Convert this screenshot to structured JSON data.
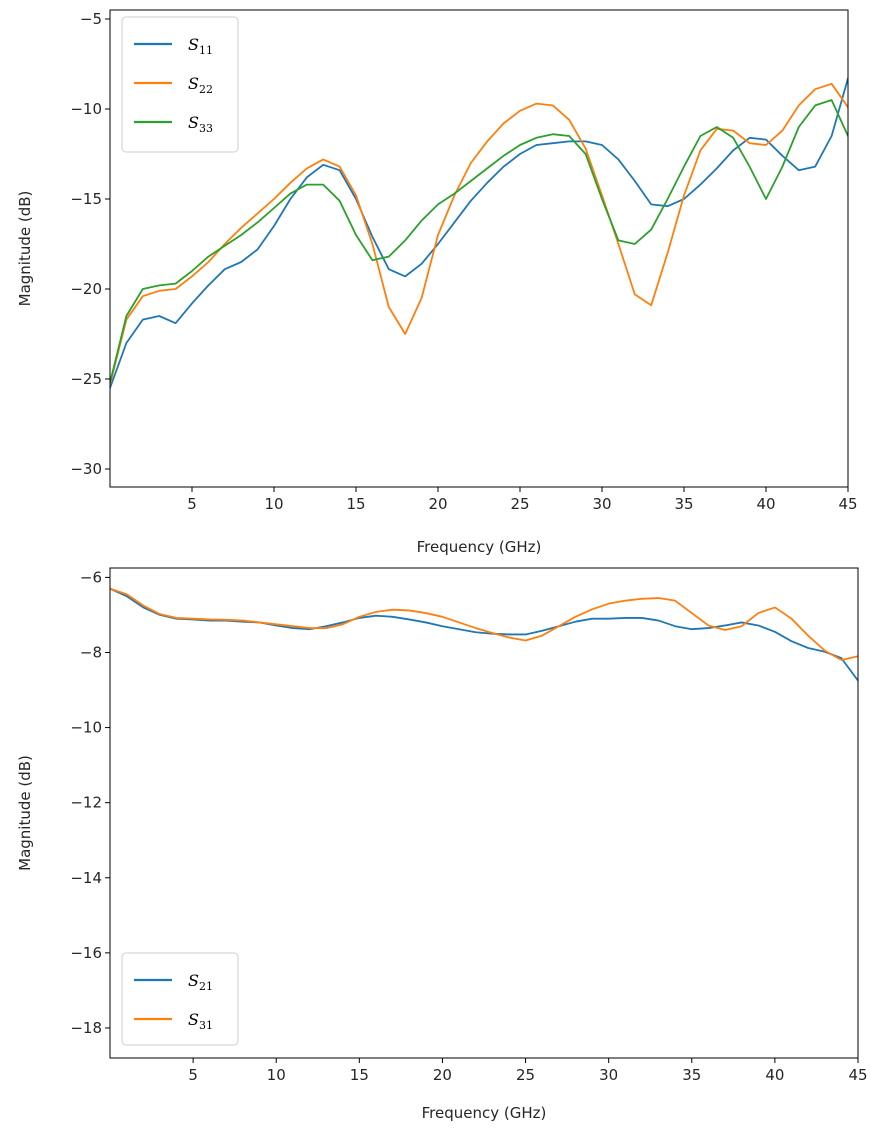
{
  "chart_data": [
    {
      "type": "line",
      "xlabel": "Frequency (GHz)",
      "ylabel": "Magnitude (dB)",
      "xlim": [
        0,
        45
      ],
      "ylim": [
        -31,
        -4.5
      ],
      "xticks": [
        5,
        10,
        15,
        20,
        25,
        30,
        35,
        40,
        45
      ],
      "xtick_labels": [
        "5",
        "10",
        "15",
        "20",
        "25",
        "30",
        "35",
        "40",
        "45"
      ],
      "yticks": [
        -30,
        -25,
        -20,
        -15,
        -10,
        -5
      ],
      "ytick_labels": [
        "−30",
        "−25",
        "−20",
        "−15",
        "−10",
        "−5"
      ],
      "legend_position": "top-left",
      "series": [
        {
          "name": "S11",
          "label_main": "S",
          "label_sub": "11",
          "color": "#1f77b4",
          "x": [
            0,
            1,
            2,
            3,
            4,
            5,
            6,
            7,
            8,
            9,
            10,
            11,
            12,
            13,
            14,
            15,
            16,
            17,
            18,
            19,
            20,
            21,
            22,
            23,
            24,
            25,
            26,
            27,
            28,
            29,
            30,
            31,
            32,
            33,
            34,
            35,
            36,
            37,
            38,
            39,
            40,
            41,
            42,
            43,
            44,
            45
          ],
          "y": [
            -25.5,
            -23.0,
            -21.7,
            -21.5,
            -21.9,
            -20.8,
            -19.8,
            -18.9,
            -18.5,
            -17.8,
            -16.5,
            -15.0,
            -13.8,
            -13.1,
            -13.4,
            -15.0,
            -17.1,
            -18.9,
            -19.3,
            -18.6,
            -17.5,
            -16.3,
            -15.1,
            -14.1,
            -13.2,
            -12.5,
            -12.0,
            -11.9,
            -11.8,
            -11.8,
            -12.0,
            -12.8,
            -14.0,
            -15.3,
            -15.4,
            -15.0,
            -14.2,
            -13.3,
            -12.3,
            -11.6,
            -11.7,
            -12.6,
            -13.4,
            -13.2,
            -11.5,
            -8.3
          ]
        },
        {
          "name": "S22",
          "label_main": "S",
          "label_sub": "22",
          "color": "#ff7f0e",
          "x": [
            0,
            1,
            2,
            3,
            4,
            5,
            6,
            7,
            8,
            9,
            10,
            11,
            12,
            13,
            14,
            15,
            16,
            17,
            18,
            19,
            20,
            21,
            22,
            23,
            24,
            25,
            26,
            27,
            28,
            29,
            30,
            31,
            32,
            33,
            34,
            35,
            36,
            37,
            38,
            39,
            40,
            41,
            42,
            43,
            44,
            45
          ],
          "y": [
            -25.3,
            -21.7,
            -20.4,
            -20.1,
            -20.0,
            -19.3,
            -18.5,
            -17.5,
            -16.6,
            -15.8,
            -15.0,
            -14.1,
            -13.3,
            -12.8,
            -13.2,
            -14.8,
            -17.5,
            -21.0,
            -22.5,
            -20.5,
            -17.0,
            -14.8,
            -13.0,
            -11.8,
            -10.8,
            -10.1,
            -9.7,
            -9.8,
            -10.6,
            -12.2,
            -14.8,
            -17.5,
            -20.3,
            -20.9,
            -18.0,
            -14.8,
            -12.3,
            -11.1,
            -11.2,
            -11.9,
            -12.0,
            -11.2,
            -9.8,
            -8.9,
            -8.6,
            -9.9
          ]
        },
        {
          "name": "S33",
          "label_main": "S",
          "label_sub": "33",
          "color": "#2ca02c",
          "x": [
            0,
            1,
            2,
            3,
            4,
            5,
            6,
            7,
            8,
            9,
            10,
            11,
            12,
            13,
            14,
            15,
            16,
            17,
            18,
            19,
            20,
            21,
            22,
            23,
            24,
            25,
            26,
            27,
            28,
            29,
            30,
            31,
            32,
            33,
            34,
            35,
            36,
            37,
            38,
            39,
            40,
            41,
            42,
            43,
            44,
            45
          ],
          "y": [
            -25.2,
            -21.5,
            -20.0,
            -19.8,
            -19.7,
            -19.0,
            -18.2,
            -17.6,
            -17.0,
            -16.3,
            -15.5,
            -14.7,
            -14.2,
            -14.2,
            -15.1,
            -17.0,
            -18.4,
            -18.2,
            -17.3,
            -16.2,
            -15.3,
            -14.7,
            -14.0,
            -13.3,
            -12.6,
            -12.0,
            -11.6,
            -11.4,
            -11.5,
            -12.5,
            -15.0,
            -17.3,
            -17.5,
            -16.7,
            -15.0,
            -13.2,
            -11.5,
            -11.0,
            -11.6,
            -13.2,
            -15.0,
            -13.2,
            -11.0,
            -9.8,
            -9.5,
            -11.5
          ]
        }
      ]
    },
    {
      "type": "line",
      "xlabel": "Frequency (GHz)",
      "ylabel": "Magnitude (dB)",
      "xlim": [
        0,
        45
      ],
      "ylim": [
        -18.8,
        -5.75
      ],
      "xticks": [
        5,
        10,
        15,
        20,
        25,
        30,
        35,
        40,
        45
      ],
      "xtick_labels": [
        "5",
        "10",
        "15",
        "20",
        "25",
        "30",
        "35",
        "40",
        "45"
      ],
      "yticks": [
        -18,
        -16,
        -14,
        -12,
        -10,
        -8,
        -6
      ],
      "ytick_labels": [
        "−18",
        "−16",
        "−14",
        "−12",
        "−10",
        "−8",
        "−6"
      ],
      "legend_position": "bottom-left",
      "series": [
        {
          "name": "S21",
          "label_main": "S",
          "label_sub": "21",
          "color": "#1f77b4",
          "x": [
            0,
            1,
            2,
            3,
            4,
            5,
            6,
            7,
            8,
            9,
            10,
            11,
            12,
            13,
            14,
            15,
            16,
            17,
            18,
            19,
            20,
            21,
            22,
            23,
            24,
            25,
            26,
            27,
            28,
            29,
            30,
            31,
            32,
            33,
            34,
            35,
            36,
            37,
            38,
            39,
            40,
            41,
            42,
            43,
            44,
            45
          ],
          "y": [
            -6.3,
            -6.5,
            -6.8,
            -7.0,
            -7.1,
            -7.12,
            -7.15,
            -7.15,
            -7.18,
            -7.2,
            -7.28,
            -7.35,
            -7.38,
            -7.3,
            -7.2,
            -7.08,
            -7.02,
            -7.05,
            -7.12,
            -7.2,
            -7.3,
            -7.38,
            -7.46,
            -7.5,
            -7.52,
            -7.52,
            -7.42,
            -7.3,
            -7.18,
            -7.1,
            -7.1,
            -7.08,
            -7.08,
            -7.15,
            -7.3,
            -7.38,
            -7.35,
            -7.28,
            -7.2,
            -7.28,
            -7.45,
            -7.7,
            -7.88,
            -7.98,
            -8.15,
            -8.75
          ]
        },
        {
          "name": "S31",
          "label_main": "S",
          "label_sub": "31",
          "color": "#ff7f0e",
          "x": [
            0,
            1,
            2,
            3,
            4,
            5,
            6,
            7,
            8,
            9,
            10,
            11,
            12,
            13,
            14,
            15,
            16,
            17,
            18,
            19,
            20,
            21,
            22,
            23,
            24,
            25,
            26,
            27,
            28,
            29,
            30,
            31,
            32,
            33,
            34,
            35,
            36,
            37,
            38,
            39,
            40,
            41,
            42,
            43,
            44,
            45
          ],
          "y": [
            -6.3,
            -6.45,
            -6.75,
            -6.98,
            -7.08,
            -7.1,
            -7.12,
            -7.13,
            -7.15,
            -7.2,
            -7.25,
            -7.3,
            -7.35,
            -7.35,
            -7.25,
            -7.05,
            -6.92,
            -6.86,
            -6.88,
            -6.95,
            -7.05,
            -7.2,
            -7.35,
            -7.48,
            -7.6,
            -7.68,
            -7.55,
            -7.3,
            -7.05,
            -6.85,
            -6.7,
            -6.62,
            -6.57,
            -6.55,
            -6.62,
            -6.95,
            -7.28,
            -7.4,
            -7.3,
            -6.95,
            -6.8,
            -7.1,
            -7.55,
            -7.95,
            -8.2,
            -8.1
          ]
        }
      ]
    }
  ]
}
